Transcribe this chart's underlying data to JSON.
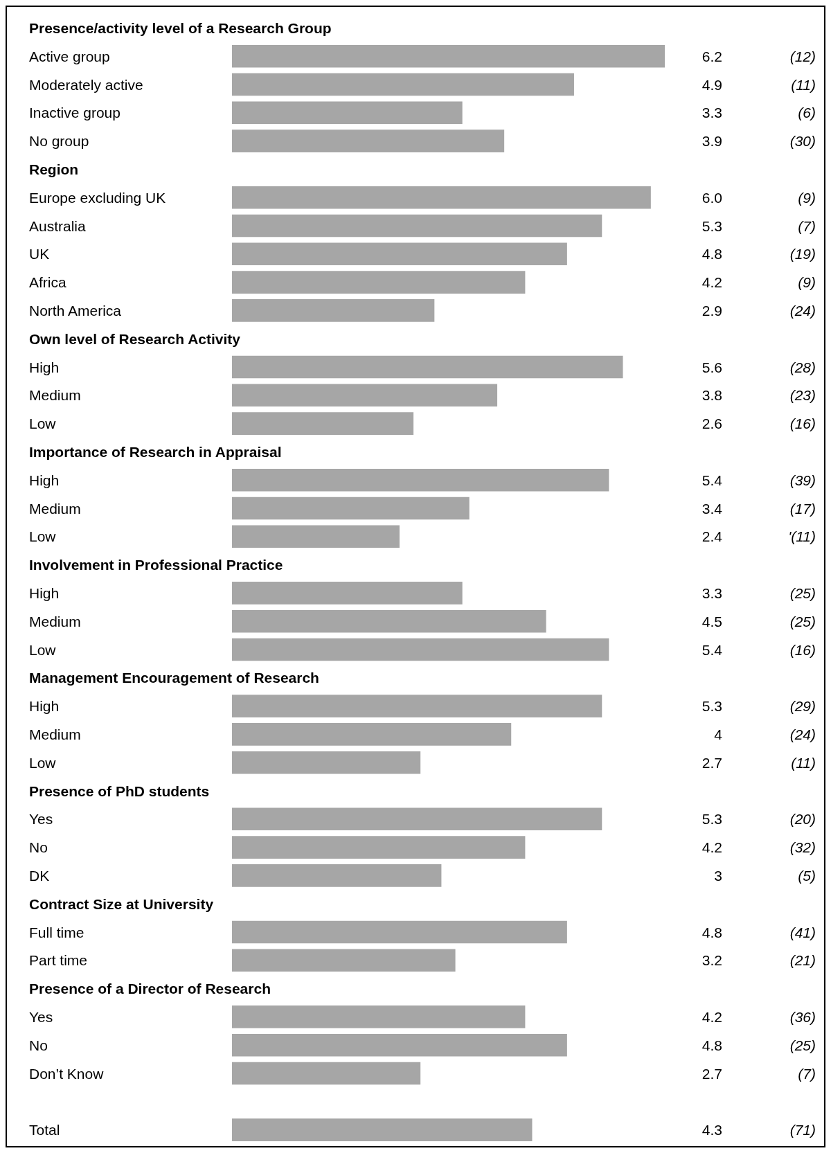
{
  "chart_data": {
    "type": "bar",
    "orientation": "horizontal",
    "categories": [
      "Presence/activity level of a Research Group",
      "Active group",
      "Moderately active",
      "Inactive group",
      "No group",
      "Region",
      "Europe excluding UK",
      "Australia",
      "UK",
      "Africa",
      "North America",
      "Own level of Research Activity",
      "High",
      "Medium",
      "Low",
      "Importance of Research in Appraisal",
      "High",
      "Medium",
      "Low",
      "Involvement in Professional Practice",
      "High",
      "Medium",
      "Low",
      "Management Encouragement of Research",
      "High",
      "Medium",
      "Low",
      "Presence of PhD students",
      "Yes",
      "No",
      "DK",
      "Contract Size at University",
      "Full time",
      "Part time",
      "Presence of a Director of Research",
      "Yes",
      "No",
      "Don’t Know",
      null,
      "Total"
    ],
    "values": [
      null,
      6.2,
      4.9,
      3.3,
      3.9,
      null,
      6.0,
      5.3,
      4.8,
      4.2,
      2.9,
      null,
      5.6,
      3.8,
      2.6,
      null,
      5.4,
      3.4,
      2.4,
      null,
      3.3,
      4.5,
      5.4,
      null,
      5.3,
      4,
      2.7,
      null,
      5.3,
      4.2,
      3,
      null,
      4.8,
      3.2,
      null,
      4.2,
      4.8,
      2.7,
      null,
      4.3
    ],
    "value_labels": [
      null,
      "6.2",
      "4.9",
      "3.3",
      "3.9",
      null,
      "6.0",
      "5.3",
      "4.8",
      "4.2",
      "2.9",
      null,
      "5.6",
      "3.8",
      "2.6",
      null,
      "5.4",
      "3.4",
      "2.4",
      null,
      "3.3",
      "4.5",
      "5.4",
      null,
      "5.3",
      "4",
      "2.7",
      null,
      "5.3",
      "4.2",
      "3",
      null,
      "4.8",
      "3.2",
      null,
      "4.2",
      "4.8",
      "2.7",
      null,
      "4.3"
    ],
    "color": "#a6a6a6",
    "annotations": [
      "(12)",
      "(11)",
      "(6)",
      "(30)",
      "(9)",
      "(7)",
      "(19)",
      "(9)",
      "(24)",
      "(28)",
      "(23)",
      "(16)",
      "(39)",
      "(17)",
      "'(11)",
      "(25)",
      "(25)",
      "(16)",
      "(29)",
      "(24)",
      "(11)",
      "(20)",
      "(32)",
      "(5)",
      "(41)",
      "(21)",
      "(36)",
      "(25)",
      "(7)",
      "(71)"
    ]
  }
}
